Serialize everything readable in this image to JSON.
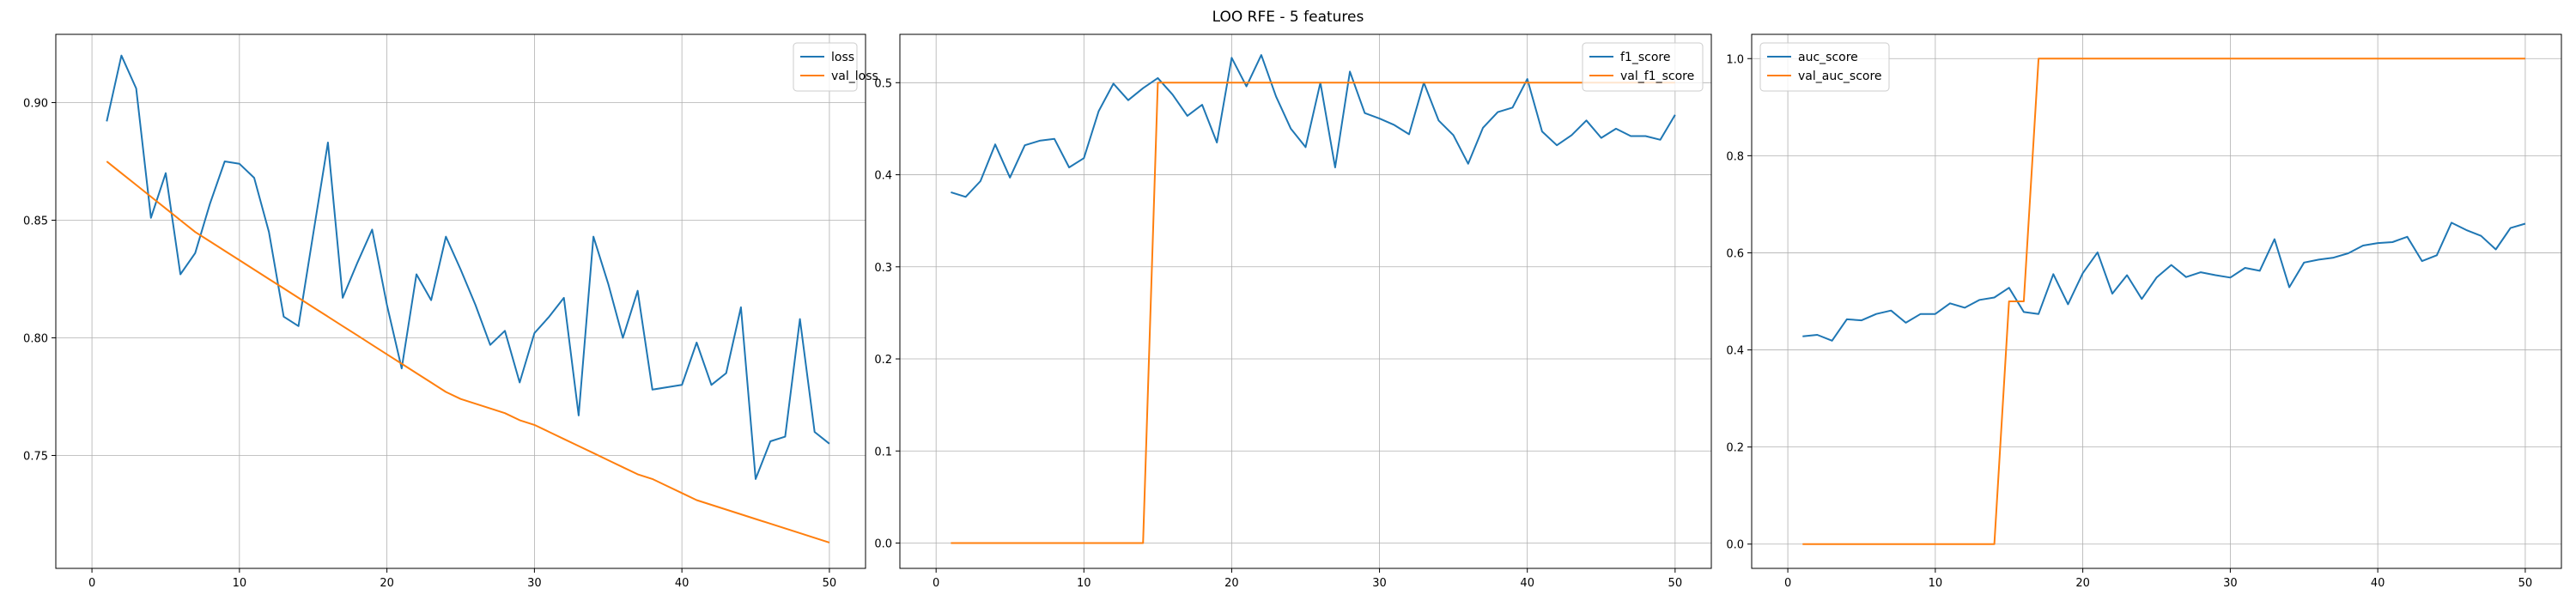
{
  "figure": {
    "title": "LOO RFE - 5 features"
  },
  "chart_data": [
    {
      "type": "line",
      "title": "",
      "xlabel": "",
      "ylabel": "",
      "xlim": [
        -2.45,
        52.45
      ],
      "ylim": [
        0.702,
        0.929
      ],
      "xticks": [
        0,
        10,
        20,
        30,
        40,
        50
      ],
      "xtick_labels": [
        "0",
        "10",
        "20",
        "30",
        "40",
        "50"
      ],
      "yticks": [
        0.75,
        0.8,
        0.85,
        0.9
      ],
      "ytick_labels": [
        "0.75",
        "0.80",
        "0.85",
        "0.90"
      ],
      "grid": true,
      "legend_position": "top-right",
      "x": [
        1,
        2,
        3,
        4,
        5,
        6,
        7,
        8,
        9,
        10,
        11,
        12,
        13,
        14,
        15,
        16,
        17,
        18,
        19,
        20,
        21,
        22,
        23,
        24,
        25,
        26,
        27,
        28,
        29,
        30,
        31,
        32,
        33,
        34,
        35,
        36,
        37,
        38,
        39,
        40,
        41,
        42,
        43,
        44,
        45,
        46,
        47,
        48,
        49,
        50
      ],
      "series": [
        {
          "name": "loss",
          "color": "#1f77b4",
          "values": [
            0.892,
            0.92,
            0.906,
            0.851,
            0.87,
            0.827,
            0.836,
            0.857,
            0.875,
            0.874,
            0.868,
            0.845,
            0.809,
            0.805,
            0.844,
            0.883,
            0.817,
            0.832,
            0.846,
            0.814,
            0.787,
            0.827,
            0.816,
            0.843,
            0.829,
            0.814,
            0.797,
            0.803,
            0.781,
            0.802,
            0.809,
            0.817,
            0.767,
            0.843,
            0.823,
            0.8,
            0.82,
            0.778,
            0.779,
            0.78,
            0.798,
            0.78,
            0.785,
            0.813,
            0.74,
            0.756,
            0.758,
            0.808,
            0.76,
            0.755
          ]
        },
        {
          "name": "val_loss",
          "color": "#ff7f0e",
          "values": [
            0.875,
            0.87,
            0.865,
            0.86,
            0.855,
            0.85,
            0.845,
            0.841,
            0.837,
            0.833,
            0.829,
            0.825,
            0.821,
            0.817,
            0.813,
            0.809,
            0.805,
            0.801,
            0.797,
            0.793,
            0.789,
            0.785,
            0.781,
            0.777,
            0.774,
            0.772,
            0.77,
            0.768,
            0.765,
            0.763,
            0.76,
            0.757,
            0.754,
            0.751,
            0.748,
            0.745,
            0.742,
            0.74,
            0.737,
            0.734,
            0.731,
            0.729,
            0.727,
            0.725,
            0.723,
            0.721,
            0.719,
            0.717,
            0.715,
            0.713
          ]
        }
      ]
    },
    {
      "type": "line",
      "title": "",
      "xlabel": "",
      "ylabel": "",
      "xlim": [
        -2.45,
        52.45
      ],
      "ylim": [
        -0.0275,
        0.5525
      ],
      "xticks": [
        0,
        10,
        20,
        30,
        40,
        50
      ],
      "xtick_labels": [
        "0",
        "10",
        "20",
        "30",
        "40",
        "50"
      ],
      "yticks": [
        0.0,
        0.1,
        0.2,
        0.3,
        0.4,
        0.5
      ],
      "ytick_labels": [
        "0.0",
        "0.1",
        "0.2",
        "0.3",
        "0.4",
        "0.5"
      ],
      "grid": true,
      "legend_position": "top-right",
      "x": [
        1,
        2,
        3,
        4,
        5,
        6,
        7,
        8,
        9,
        10,
        11,
        12,
        13,
        14,
        15,
        16,
        17,
        18,
        19,
        20,
        21,
        22,
        23,
        24,
        25,
        26,
        27,
        28,
        29,
        30,
        31,
        32,
        33,
        34,
        35,
        36,
        37,
        38,
        39,
        40,
        41,
        42,
        43,
        44,
        45,
        46,
        47,
        48,
        49,
        50
      ],
      "series": [
        {
          "name": "f1_score",
          "color": "#1f77b4",
          "values": [
            0.381,
            0.376,
            0.393,
            0.433,
            0.397,
            0.432,
            0.437,
            0.439,
            0.408,
            0.418,
            0.469,
            0.499,
            0.481,
            0.494,
            0.505,
            0.487,
            0.464,
            0.476,
            0.435,
            0.527,
            0.496,
            0.53,
            0.485,
            0.45,
            0.43,
            0.5,
            0.408,
            0.512,
            0.467,
            0.461,
            0.454,
            0.444,
            0.5,
            0.459,
            0.443,
            0.412,
            0.451,
            0.468,
            0.473,
            0.504,
            0.447,
            0.432,
            0.443,
            0.459,
            0.44,
            0.45,
            0.442,
            0.442,
            0.438,
            0.465
          ]
        },
        {
          "name": "val_f1_score",
          "color": "#ff7f0e",
          "values": [
            0,
            0,
            0,
            0,
            0,
            0,
            0,
            0,
            0,
            0,
            0,
            0,
            0,
            0,
            0.5,
            0.5,
            0.5,
            0.5,
            0.5,
            0.5,
            0.5,
            0.5,
            0.5,
            0.5,
            0.5,
            0.5,
            0.5,
            0.5,
            0.5,
            0.5,
            0.5,
            0.5,
            0.5,
            0.5,
            0.5,
            0.5,
            0.5,
            0.5,
            0.5,
            0.5,
            0.5,
            0.5,
            0.5,
            0.5,
            0.5,
            0.5,
            0.5,
            0.5,
            0.5,
            0.5
          ]
        }
      ]
    },
    {
      "type": "line",
      "title": "",
      "xlabel": "",
      "ylabel": "",
      "xlim": [
        -2.45,
        52.45
      ],
      "ylim": [
        -0.05,
        1.05
      ],
      "xticks": [
        0,
        10,
        20,
        30,
        40,
        50
      ],
      "xtick_labels": [
        "0",
        "10",
        "20",
        "30",
        "40",
        "50"
      ],
      "yticks": [
        0.0,
        0.2,
        0.4,
        0.6,
        0.8,
        1.0
      ],
      "ytick_labels": [
        "0.0",
        "0.2",
        "0.4",
        "0.6",
        "0.8",
        "1.0"
      ],
      "grid": true,
      "legend_position": "top-left",
      "x": [
        1,
        2,
        3,
        4,
        5,
        6,
        7,
        8,
        9,
        10,
        11,
        12,
        13,
        14,
        15,
        16,
        17,
        18,
        19,
        20,
        21,
        22,
        23,
        24,
        25,
        26,
        27,
        28,
        29,
        30,
        31,
        32,
        33,
        34,
        35,
        36,
        37,
        38,
        39,
        40,
        41,
        42,
        43,
        44,
        45,
        46,
        47,
        48,
        49,
        50
      ],
      "series": [
        {
          "name": "auc_score",
          "color": "#1f77b4",
          "values": [
            0.428,
            0.431,
            0.419,
            0.463,
            0.461,
            0.474,
            0.481,
            0.456,
            0.474,
            0.474,
            0.496,
            0.487,
            0.503,
            0.508,
            0.528,
            0.478,
            0.474,
            0.556,
            0.494,
            0.558,
            0.601,
            0.516,
            0.554,
            0.505,
            0.549,
            0.575,
            0.55,
            0.56,
            0.554,
            0.549,
            0.569,
            0.563,
            0.628,
            0.529,
            0.58,
            0.586,
            0.59,
            0.599,
            0.615,
            0.62,
            0.622,
            0.633,
            0.583,
            0.595,
            0.662,
            0.647,
            0.635,
            0.607,
            0.651,
            0.66
          ]
        },
        {
          "name": "val_auc_score",
          "color": "#ff7f0e",
          "values": [
            0,
            0,
            0,
            0,
            0,
            0,
            0,
            0,
            0,
            0,
            0,
            0,
            0,
            0,
            0.5,
            0.5,
            1,
            1,
            1,
            1,
            1,
            1,
            1,
            1,
            1,
            1,
            1,
            1,
            1,
            1,
            1,
            1,
            1,
            1,
            1,
            1,
            1,
            1,
            1,
            1,
            1,
            1,
            1,
            1,
            1,
            1,
            1,
            1,
            1,
            1
          ]
        }
      ]
    }
  ]
}
